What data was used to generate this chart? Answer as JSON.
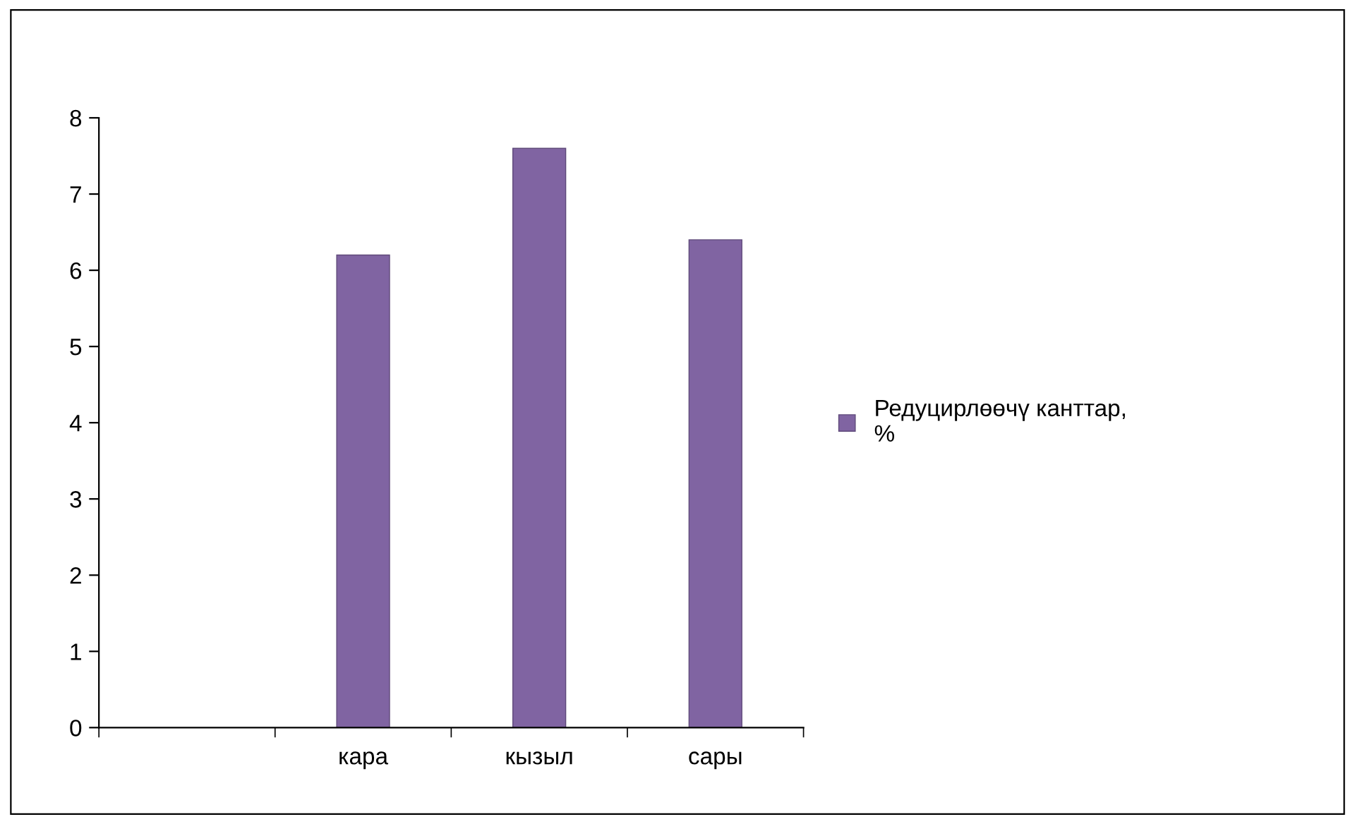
{
  "chart_data": {
    "type": "bar",
    "categories": [
      null,
      "кара",
      "кызыл",
      "сары"
    ],
    "series": [
      {
        "name": "Редуцирлөөчү канттар, %",
        "color": "#8064a2",
        "values": [
          null,
          6.2,
          7.6,
          6.4
        ]
      }
    ],
    "ylim": [
      0,
      8
    ],
    "yticks": [
      0,
      1,
      2,
      3,
      4,
      5,
      6,
      7,
      8
    ],
    "grid": false,
    "legend": "right"
  }
}
